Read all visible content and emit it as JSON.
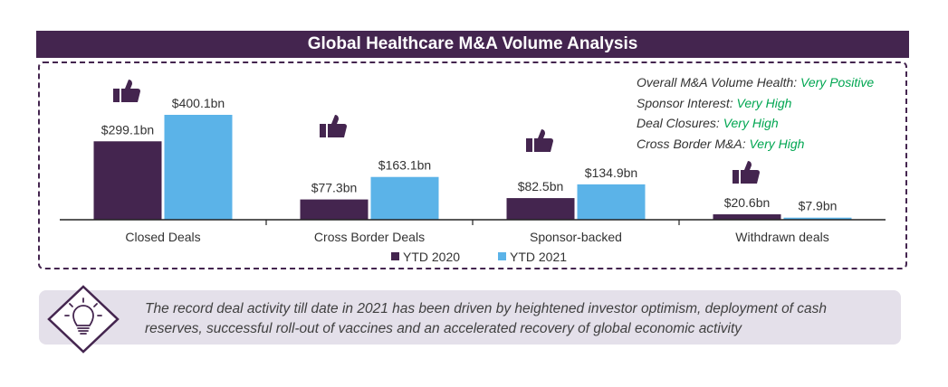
{
  "header": {
    "title": "Global Healthcare M&A Volume Analysis"
  },
  "chart_data": {
    "type": "bar",
    "categories": [
      "Closed Deals",
      "Cross Border Deals",
      "Sponsor-backed",
      "Withdrawn deals"
    ],
    "series": [
      {
        "name": "YTD 2020",
        "color": "#44254f",
        "values": [
          299.1,
          77.3,
          82.5,
          20.6
        ],
        "labels": [
          "$299.1bn",
          "$77.3bn",
          "$82.5bn",
          "$20.6bn"
        ]
      },
      {
        "name": "YTD 2021",
        "color": "#5bb3e8",
        "values": [
          400.1,
          163.1,
          134.9,
          7.9
        ],
        "labels": [
          "$400.1bn",
          "$163.1bn",
          "$134.9bn",
          "$7.9bn"
        ]
      }
    ],
    "ylim": [
      0,
      400.1
    ],
    "legend_position": "bottom-center",
    "grid": false,
    "title": "",
    "xlabel": "",
    "ylabel": ""
  },
  "summary": {
    "items": [
      {
        "label": "Overall M&A Volume Health: ",
        "value": "Very Positive"
      },
      {
        "label": "Sponsor Interest: ",
        "value": "Very High"
      },
      {
        "label": "Deal Closures: ",
        "value": "Very High"
      },
      {
        "label": "Cross Border M&A: ",
        "value": "Very High"
      }
    ]
  },
  "note": {
    "text": "The record deal activity till date in 2021 has been driven by heightened investor optimism, deployment of cash reserves, successful roll-out of vaccines and an accelerated recovery of global economic activity"
  },
  "colors": {
    "accent": "#44254f",
    "light_bar": "#5bb3e8",
    "positive": "#00a651",
    "note_bg": "#e4e0ea"
  },
  "icons": {
    "category": "thumbs-up-icon",
    "note": "lightbulb-icon"
  }
}
